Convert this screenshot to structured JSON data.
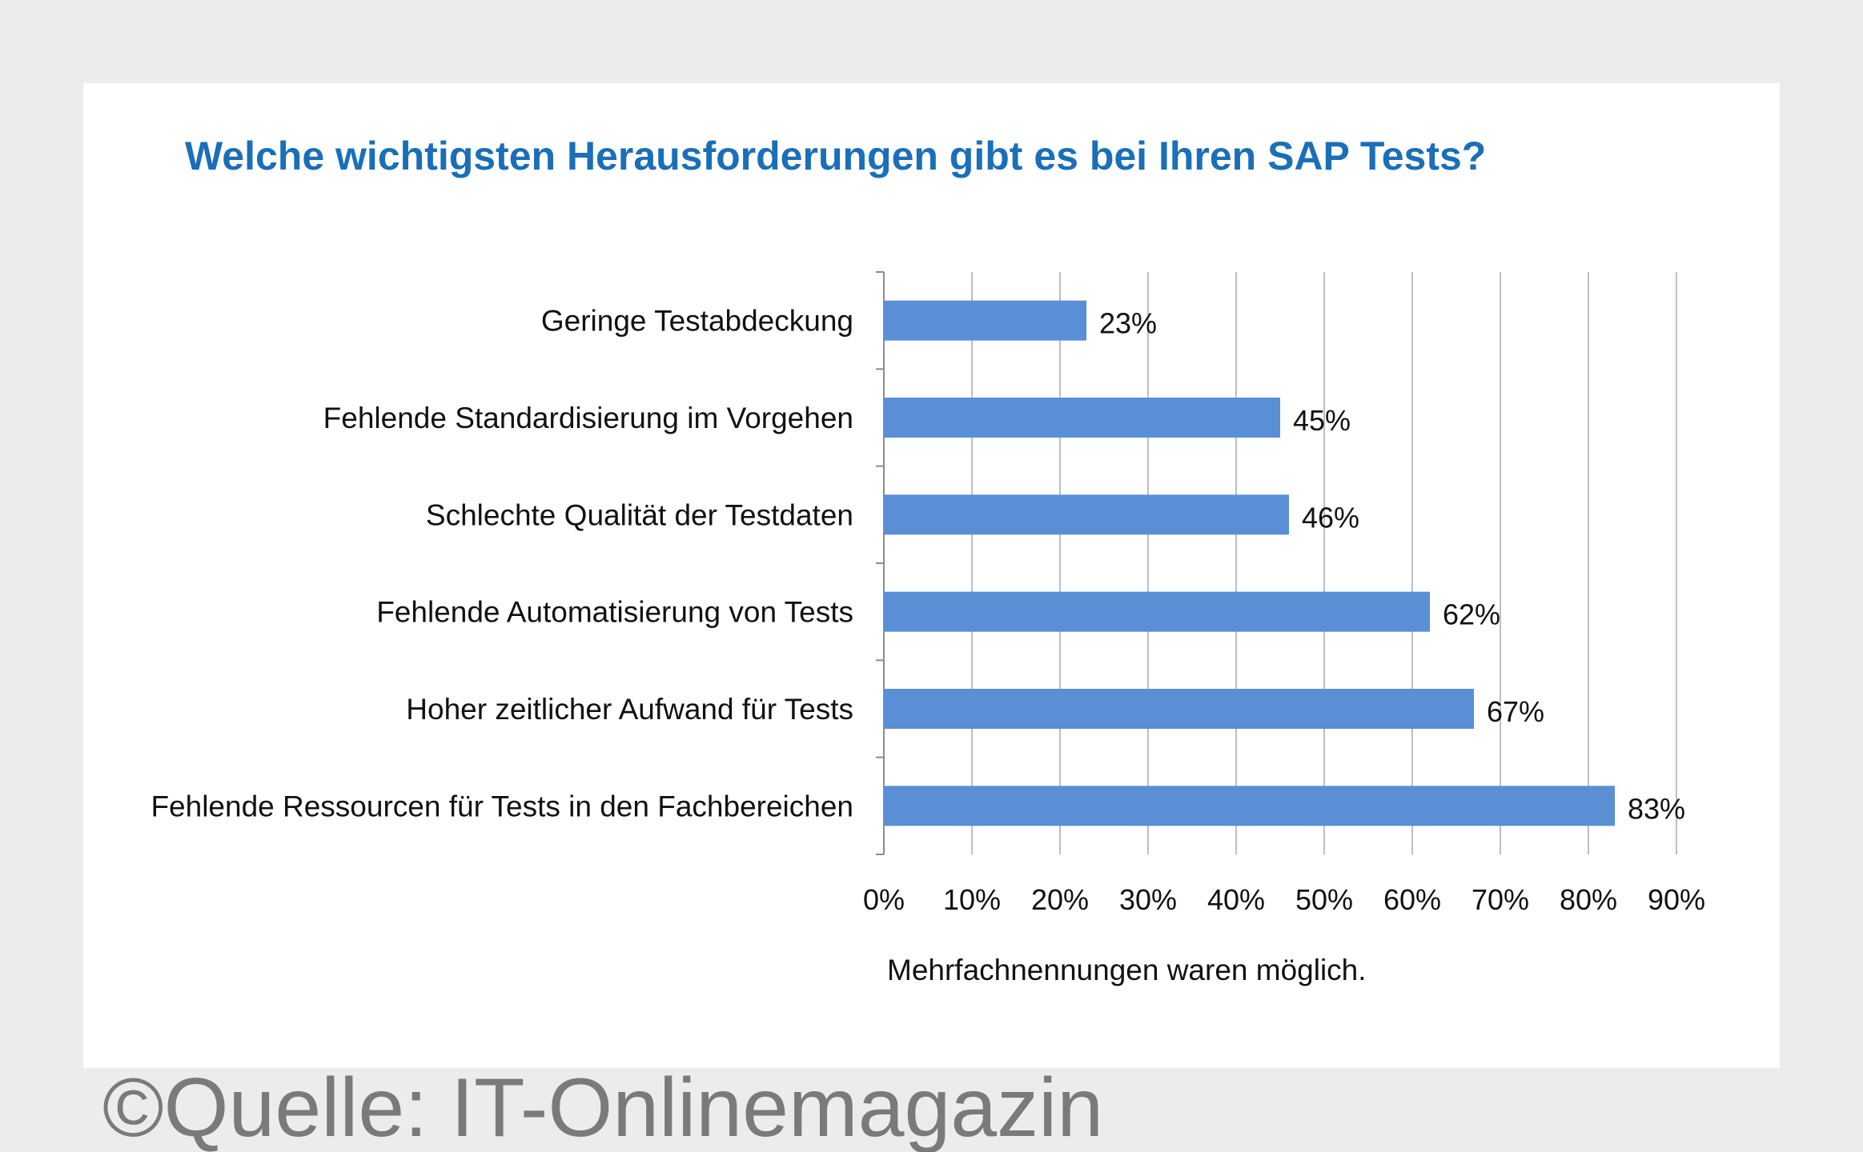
{
  "colors": {
    "title": "#1a6fb8",
    "bar": "#5a8fd6",
    "grid": "#bfbfbf",
    "axis": "#8c8c8c",
    "text": "#111111",
    "watermark": "#7a7a7a"
  },
  "chart_data": {
    "type": "bar",
    "orientation": "horizontal",
    "title": "Welche wichtigsten Herausforderungen gibt es bei Ihren SAP Tests?",
    "categories": [
      "Geringe Testabdeckung",
      "Fehlende Standardisierung im Vorgehen",
      "Schlechte Qualität der Testdaten",
      "Fehlende Automatisierung von Tests",
      "Hoher zeitlicher Aufwand für Tests",
      "Fehlende Ressourcen für Tests in den Fachbereichen"
    ],
    "values": [
      23,
      45,
      46,
      62,
      67,
      83
    ],
    "value_labels": [
      "23%",
      "45%",
      "46%",
      "62%",
      "67%",
      "83%"
    ],
    "xlim": [
      0,
      90
    ],
    "ticks": [
      0,
      10,
      20,
      30,
      40,
      50,
      60,
      70,
      80,
      90
    ],
    "tick_labels": [
      "0%",
      "10%",
      "20%",
      "30%",
      "40%",
      "50%",
      "60%",
      "70%",
      "80%",
      "90%"
    ],
    "grid": true,
    "xlabel": "Mehrfachnennungen waren möglich.",
    "ylabel": ""
  },
  "footnote": "Mehrfachnennungen waren möglich.",
  "source": "©Quelle: IT-Onlinemagazin"
}
